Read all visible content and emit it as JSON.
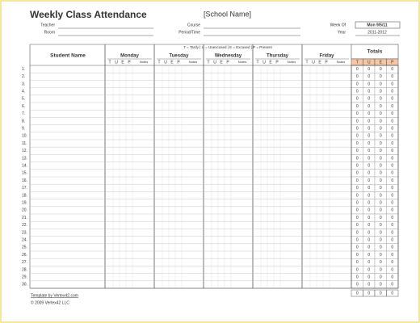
{
  "header": {
    "title": "Weekly Class Attendance",
    "school_name": "[School Name]",
    "labels": [
      "Teacher",
      "Room",
      "Course",
      "Period/Time",
      "Week Of",
      "Year"
    ],
    "week_of": "Mon 9/5/11",
    "year": "2011-2012"
  },
  "legend": "T = Tardy  |  U = Unexcused  |  E = Excused  |  P = Present",
  "table": {
    "name_header": "Student Name",
    "days": [
      "Monday",
      "Tuesday",
      "Wednesday",
      "Thursday",
      "Friday"
    ],
    "day_subheaders": [
      "T",
      "U",
      "E",
      "P",
      "Notes"
    ],
    "totals_header": "Totals",
    "totals_subheaders": [
      "T",
      "U",
      "E",
      "P"
    ],
    "row_numbers": [
      "1.",
      "2.",
      "3.",
      "4.",
      "5.",
      "6.",
      "7.",
      "8.",
      "9.",
      "10.",
      "11.",
      "12.",
      "13.",
      "14.",
      "15.",
      "16.",
      "17.",
      "18.",
      "19.",
      "20.",
      "21.",
      "22.",
      "23.",
      "24.",
      "25.",
      "26.",
      "27.",
      "28.",
      "29.",
      "30."
    ],
    "totals": [
      [
        0,
        0,
        0,
        0
      ],
      [
        0,
        0,
        0,
        0
      ],
      [
        0,
        0,
        0,
        0
      ],
      [
        0,
        0,
        0,
        0
      ],
      [
        0,
        0,
        0,
        0
      ],
      [
        0,
        0,
        0,
        0
      ],
      [
        0,
        0,
        0,
        0
      ],
      [
        0,
        0,
        0,
        0
      ],
      [
        0,
        0,
        0,
        0
      ],
      [
        0,
        0,
        0,
        0
      ],
      [
        0,
        0,
        0,
        0
      ],
      [
        0,
        0,
        0,
        0
      ],
      [
        0,
        0,
        0,
        0
      ],
      [
        0,
        0,
        0,
        0
      ],
      [
        0,
        0,
        0,
        0
      ],
      [
        0,
        0,
        0,
        0
      ],
      [
        0,
        0,
        0,
        0
      ],
      [
        0,
        0,
        0,
        0
      ],
      [
        0,
        0,
        0,
        0
      ],
      [
        0,
        0,
        0,
        0
      ],
      [
        0,
        0,
        0,
        0
      ],
      [
        0,
        0,
        0,
        0
      ],
      [
        0,
        0,
        0,
        0
      ],
      [
        0,
        0,
        0,
        0
      ],
      [
        0,
        0,
        0,
        0
      ],
      [
        0,
        0,
        0,
        0
      ],
      [
        0,
        0,
        0,
        0
      ],
      [
        0,
        0,
        0,
        0
      ],
      [
        0,
        0,
        0,
        0
      ],
      [
        0,
        0,
        0,
        0
      ]
    ],
    "grand_totals": [
      0,
      0,
      0,
      0
    ]
  },
  "footer": {
    "credit": "Template by Vertex42.com",
    "copyright": "© 2009 Vertex42 LLC"
  }
}
